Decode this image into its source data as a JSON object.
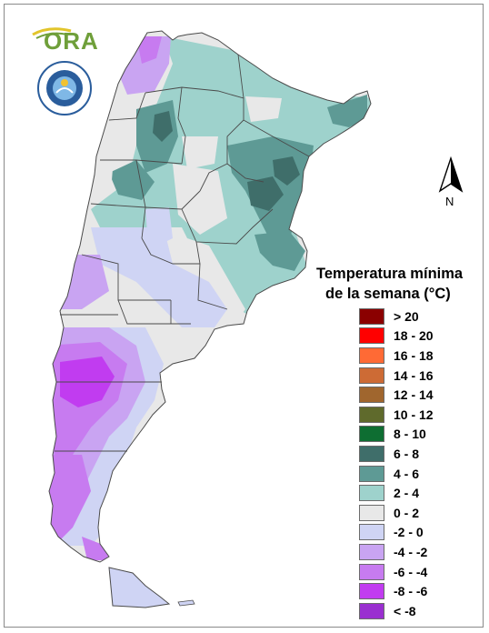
{
  "logo": {
    "text": "ORA"
  },
  "north_arrow": {
    "label": "N"
  },
  "legend": {
    "title_line1": "Temperatura mínima",
    "title_line2": "de la semana (°C)",
    "items": [
      {
        "label": "> 20",
        "color": "#8b0000"
      },
      {
        "label": "18 - 20",
        "color": "#ff0000"
      },
      {
        "label": "16 - 18",
        "color": "#ff6a35"
      },
      {
        "label": "14 - 16",
        "color": "#cd6b35"
      },
      {
        "label": "12 - 14",
        "color": "#a0662e"
      },
      {
        "label": "10 - 12",
        "color": "#5f6a2c"
      },
      {
        "label": "8 - 10",
        "color": "#0e6e32"
      },
      {
        "label": "6 - 8",
        "color": "#3f6e6a"
      },
      {
        "label": "4 - 6",
        "color": "#5e9a95"
      },
      {
        "label": "2 - 4",
        "color": "#9ed2cc"
      },
      {
        "label": "0 - 2",
        "color": "#e8e8e8"
      },
      {
        "label": "-2 - 0",
        "color": "#cfd4f4"
      },
      {
        "label": "-4 - -2",
        "color": "#c9a4f2"
      },
      {
        "label": "-6 - -4",
        "color": "#c77bf0"
      },
      {
        "label": "-8 - -6",
        "color": "#c13cf0"
      },
      {
        "label": "< -8",
        "color": "#9a2fd0"
      }
    ]
  }
}
